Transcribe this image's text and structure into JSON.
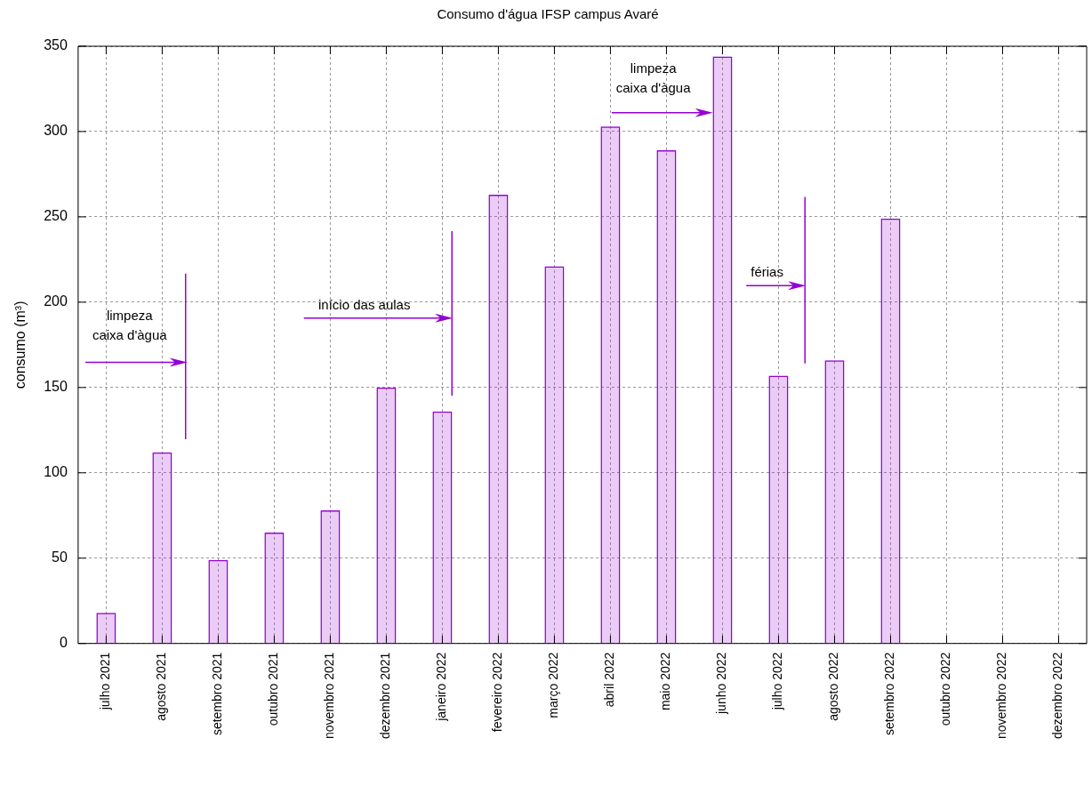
{
  "chart_data": {
    "type": "bar",
    "title": "Consumo d'água IFSP campus Avaré",
    "ylabel": "consumo (m³)",
    "categories": [
      "julho 2021",
      "agosto 2021",
      "setembro 2021",
      "outubro 2021",
      "novembro 2021",
      "dezembro 2021",
      "janeiro 2022",
      "fevereiro 2022",
      "março 2022",
      "abril 2022",
      "maio 2022",
      "junho 2022",
      "julho 2022",
      "agosto 2022",
      "setembro 2022",
      "outubro 2022",
      "novembro 2022",
      "dezembro 2022"
    ],
    "values": [
      18,
      112,
      49,
      65,
      78,
      150,
      136,
      263,
      221,
      303,
      289,
      344,
      157,
      166,
      249,
      null,
      null,
      null
    ],
    "color": "#9400d3",
    "ylim": [
      0,
      350
    ],
    "yticks": [
      0,
      50,
      100,
      150,
      200,
      250,
      300,
      350
    ],
    "grid": true,
    "legend": false,
    "annotations": [
      "limpeza\ncaixa d'àgua",
      "início das aulas",
      "limpeza\ncaixa d'àgua",
      "férias"
    ]
  }
}
